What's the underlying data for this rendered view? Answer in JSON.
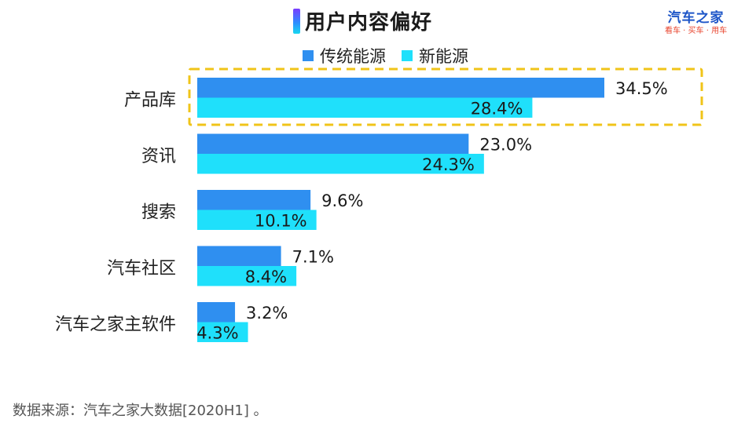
{
  "title": "用户内容偏好",
  "brand": {
    "name": "汽车之家",
    "slogan": "看车 · 买车 · 用车"
  },
  "colors": {
    "series1": "#2f8ff0",
    "series2": "#1fe0fb",
    "highlight": "#f0c419",
    "accent_top": "#7a3cff",
    "accent_bottom": "#18d8f0"
  },
  "chart_data": {
    "type": "bar",
    "orientation": "horizontal",
    "title": "用户内容偏好",
    "categories": [
      "产品库",
      "资讯",
      "搜索",
      "汽车社区",
      "汽车之家主软件"
    ],
    "series": [
      {
        "name": "传统能源",
        "values": [
          34.5,
          23.0,
          9.6,
          7.1,
          3.2
        ],
        "labels": [
          "34.5%",
          "23.0%",
          "9.6%",
          "7.1%",
          "3.2%"
        ]
      },
      {
        "name": "新能源",
        "values": [
          28.4,
          24.3,
          10.1,
          8.4,
          4.3
        ],
        "labels": [
          "28.4%",
          "24.3%",
          "10.1%",
          "8.4%",
          "4.3%"
        ]
      }
    ],
    "value_unit": "%",
    "xlim": [
      0,
      34.5
    ],
    "highlighted_category": "产品库",
    "legend_position": "top"
  },
  "source": "数据来源：汽车之家大数据[2020H1] 。"
}
